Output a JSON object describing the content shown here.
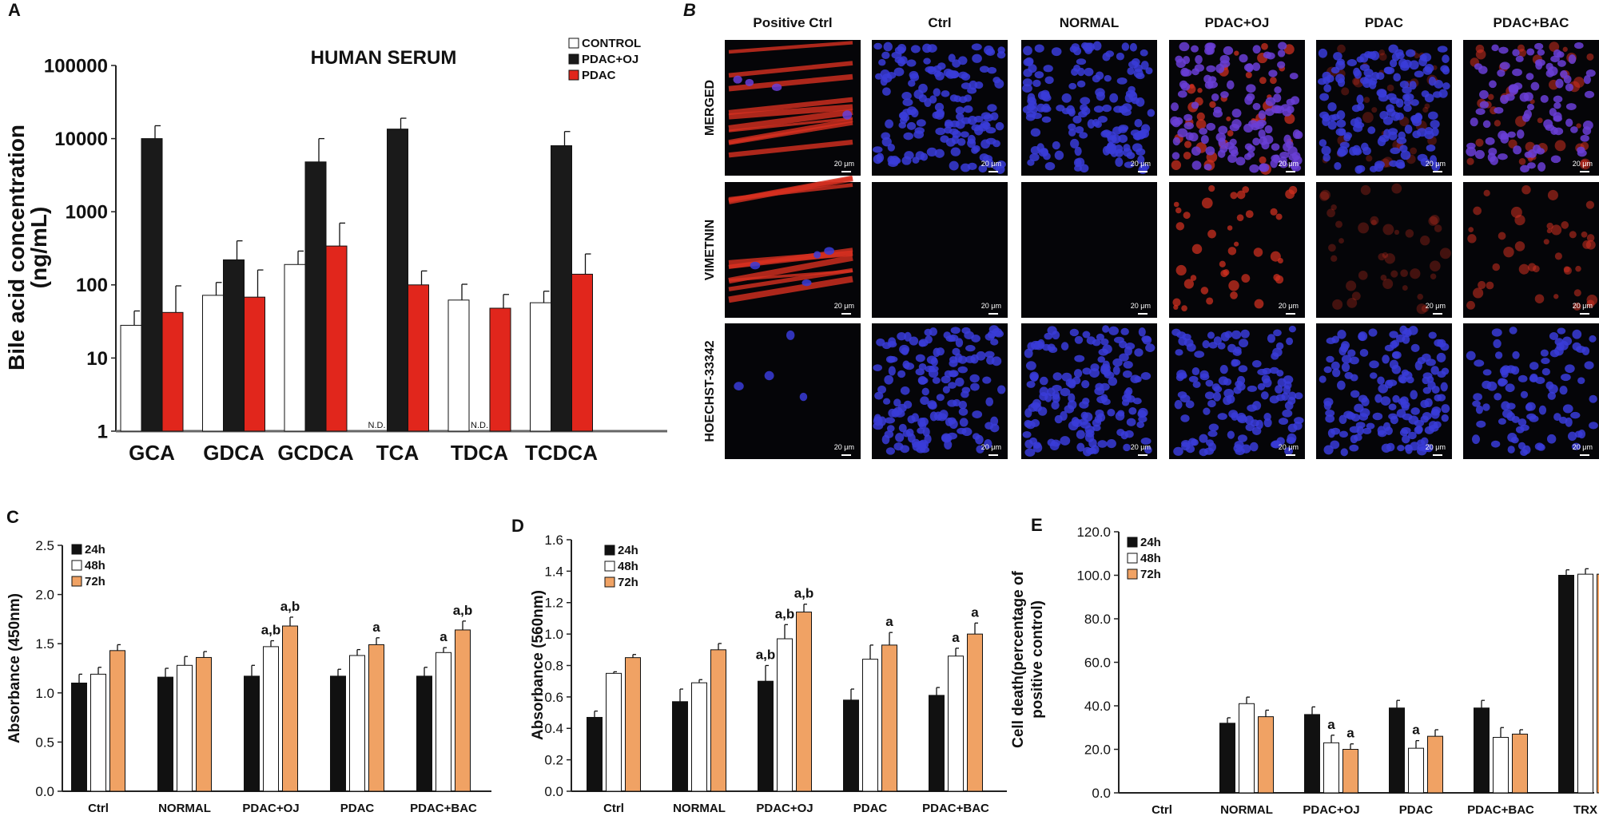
{
  "colors": {
    "control": "#ffffff",
    "pdac_oj": "#1a1a1a",
    "pdac": "#e1261c",
    "h24": "#111111",
    "h48": "#ffffff",
    "h72": "#f0a264"
  },
  "chart_data": [
    {
      "panel": "A",
      "type": "bar",
      "scale": "log",
      "title": "HUMAN SERUM",
      "ylabel_line1": "Bile acid concentration",
      "ylabel_line2": "(ng/mL)",
      "ylim": [
        1,
        100000
      ],
      "yticks": [
        "1",
        "10",
        "100",
        "1000",
        "10000",
        "100000"
      ],
      "categories": [
        "GCA",
        "GDCA",
        "GCDCA",
        "TCA",
        "TDCA",
        "TCDCA"
      ],
      "nd_label": "N.D.",
      "series": [
        {
          "name": "CONTROL",
          "values": [
            28,
            72,
            190,
            null,
            62,
            57
          ],
          "errors": [
            44,
            108,
            290,
            null,
            102,
            82
          ]
        },
        {
          "name": "PDAC+OJ",
          "values": [
            10000,
            220,
            4800,
            13500,
            null,
            8000
          ],
          "errors": [
            15000,
            400,
            10000,
            19000,
            null,
            12500
          ]
        },
        {
          "name": "PDAC",
          "values": [
            42,
            68,
            340,
            100,
            48,
            140
          ],
          "errors": [
            97,
            160,
            700,
            155,
            74,
            265
          ]
        }
      ]
    },
    {
      "panel": "C",
      "type": "bar",
      "ylabel": "Absorbance (450nm)",
      "ylim": [
        0,
        2.5
      ],
      "yticks": [
        "0.0",
        "0.5",
        "1.0",
        "1.5",
        "2.0",
        "2.5"
      ],
      "categories": [
        "Ctrl",
        "NORMAL",
        "PDAC+OJ",
        "PDAC",
        "PDAC+BAC"
      ],
      "series": [
        {
          "name": "24h",
          "values": [
            1.1,
            1.16,
            1.17,
            1.17,
            1.17
          ],
          "errors": [
            0.09,
            0.09,
            0.11,
            0.07,
            0.09
          ]
        },
        {
          "name": "48h",
          "values": [
            1.19,
            1.28,
            1.47,
            1.38,
            1.41
          ],
          "errors": [
            0.07,
            0.09,
            0.06,
            0.06,
            0.05
          ]
        },
        {
          "name": "72h",
          "values": [
            1.43,
            1.36,
            1.68,
            1.49,
            1.64
          ],
          "errors": [
            0.06,
            0.06,
            0.09,
            0.07,
            0.09
          ]
        }
      ],
      "annotations": [
        {
          "category": 2,
          "series": 1,
          "text": "a,b"
        },
        {
          "category": 2,
          "series": 2,
          "text": "a,b"
        },
        {
          "category": 3,
          "series": 2,
          "text": "a"
        },
        {
          "category": 4,
          "series": 1,
          "text": "a"
        },
        {
          "category": 4,
          "series": 2,
          "text": "a,b"
        }
      ]
    },
    {
      "panel": "D",
      "type": "bar",
      "ylabel": "Absorbance (560nm)",
      "ylim": [
        0,
        1.6
      ],
      "yticks": [
        "0.0",
        "0.2",
        "0.4",
        "0.6",
        "0.8",
        "1.0",
        "1.2",
        "1.4",
        "1.6"
      ],
      "categories": [
        "Ctrl",
        "NORMAL",
        "PDAC+OJ",
        "PDAC",
        "PDAC+BAC"
      ],
      "series": [
        {
          "name": "24h",
          "values": [
            0.47,
            0.57,
            0.7,
            0.58,
            0.61
          ],
          "errors": [
            0.04,
            0.08,
            0.1,
            0.07,
            0.05
          ]
        },
        {
          "name": "48h",
          "values": [
            0.75,
            0.69,
            0.97,
            0.84,
            0.86
          ],
          "errors": [
            0.01,
            0.02,
            0.09,
            0.09,
            0.05
          ]
        },
        {
          "name": "72h",
          "values": [
            0.85,
            0.9,
            1.14,
            0.93,
            1.0
          ],
          "errors": [
            0.02,
            0.04,
            0.05,
            0.08,
            0.07
          ]
        }
      ],
      "annotations": [
        {
          "category": 2,
          "series": 0,
          "text": "a,b"
        },
        {
          "category": 2,
          "series": 1,
          "text": "a,b"
        },
        {
          "category": 2,
          "series": 2,
          "text": "a,b"
        },
        {
          "category": 3,
          "series": 2,
          "text": "a"
        },
        {
          "category": 4,
          "series": 1,
          "text": "a"
        },
        {
          "category": 4,
          "series": 2,
          "text": "a"
        }
      ]
    },
    {
      "panel": "E",
      "type": "bar",
      "ylabel_line1": "Cell death(percentage of",
      "ylabel_line2": "positive control)",
      "ylim": [
        0,
        120
      ],
      "yticks": [
        "0.0",
        "20.0",
        "40.0",
        "60.0",
        "80.0",
        "100.0",
        "120.0"
      ],
      "categories": [
        "Ctrl",
        "NORMAL",
        "PDAC+OJ",
        "PDAC",
        "PDAC+BAC",
        "TRX"
      ],
      "series": [
        {
          "name": "24h",
          "values": [
            null,
            32,
            36,
            39,
            39,
            100
          ],
          "errors": [
            null,
            2.5,
            3.5,
            3.5,
            3.5,
            2.5
          ]
        },
        {
          "name": "48h",
          "values": [
            null,
            41,
            23,
            20.5,
            25.5,
            100.5
          ],
          "errors": [
            null,
            3,
            3.5,
            3.5,
            4.5,
            2.5
          ]
        },
        {
          "name": "72h",
          "values": [
            null,
            35,
            20,
            26,
            27,
            100.5
          ],
          "errors": [
            null,
            3,
            2.5,
            3,
            2,
            3.5
          ]
        }
      ],
      "annotations": [
        {
          "category": 2,
          "series": 1,
          "text": "a"
        },
        {
          "category": 2,
          "series": 2,
          "text": "a"
        },
        {
          "category": 3,
          "series": 1,
          "text": "a"
        }
      ]
    }
  ],
  "panel_b": {
    "letter": "B",
    "columns": [
      "Positive Ctrl",
      "Ctrl",
      "NORMAL",
      "PDAC+OJ",
      "PDAC",
      "PDAC+BAC"
    ],
    "rows": [
      "MERGED",
      "VIMETNIN",
      "HOECHST-33342"
    ],
    "scale_bar": "20 μm"
  }
}
